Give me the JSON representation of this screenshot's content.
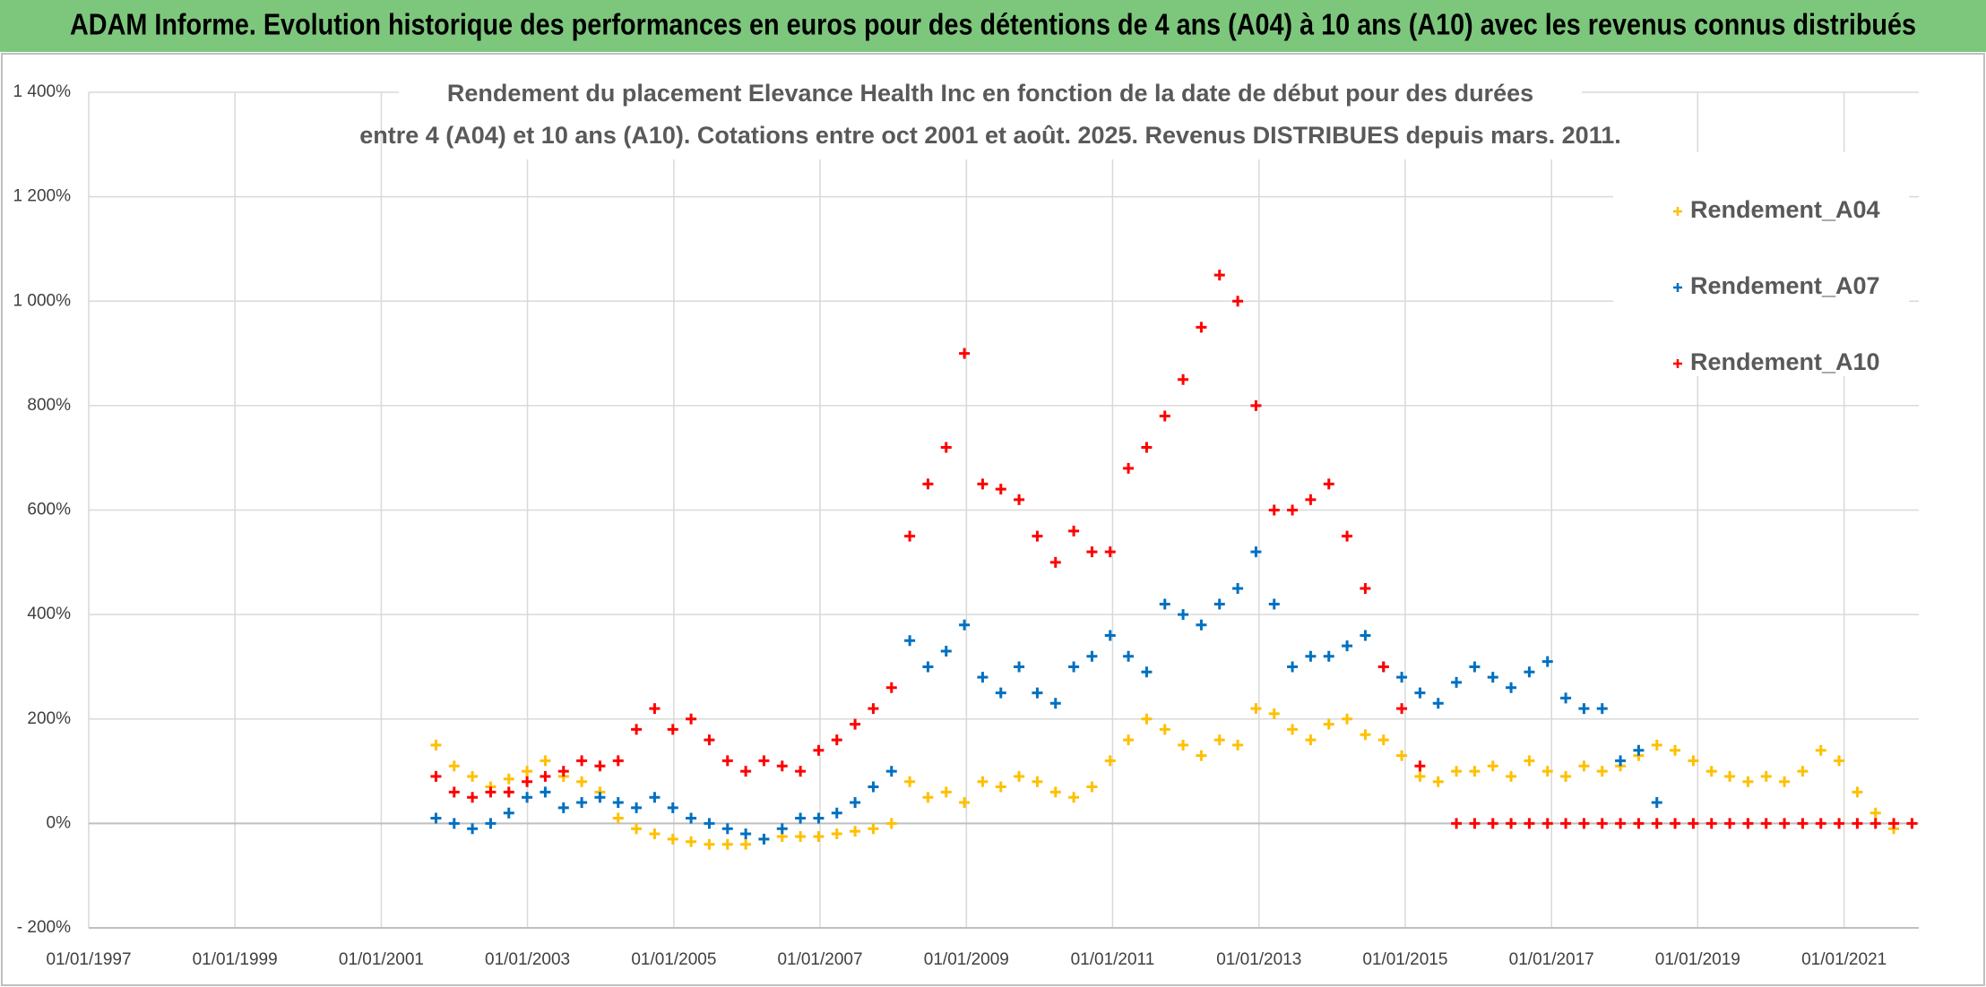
{
  "header": {
    "title": "ADAM Informe. Evolution historique des performances en euros pour des détentions de 4 ans (A04) à 10 ans (A10) avec les revenus connus distribués"
  },
  "chart_data": {
    "type": "scatter",
    "title": [
      "Rendement du placement Elevance Health Inc en fonction de la date de début pour des durées",
      "entre 4 (A04) et 10 ans (A10). Cotations entre oct 2001 et août. 2025. Revenus DISTRIBUES depuis mars. 2011."
    ],
    "xlim": [
      35431,
      44570
    ],
    "xticks": [
      {
        "value": 35431,
        "label": "01/01/1997"
      },
      {
        "value": 36161,
        "label": "01/01/1999"
      },
      {
        "value": 36892,
        "label": "01/01/2001"
      },
      {
        "value": 37622,
        "label": "01/01/2003"
      },
      {
        "value": 38353,
        "label": "01/01/2005"
      },
      {
        "value": 39083,
        "label": "01/01/2007"
      },
      {
        "value": 39814,
        "label": "01/01/2009"
      },
      {
        "value": 40544,
        "label": "01/01/2011"
      },
      {
        "value": 41275,
        "label": "01/01/2013"
      },
      {
        "value": 42005,
        "label": "01/01/2015"
      },
      {
        "value": 42736,
        "label": "01/01/2017"
      },
      {
        "value": 43466,
        "label": "01/01/2019"
      },
      {
        "value": 44197,
        "label": "01/01/2021"
      }
    ],
    "ylim": [
      -200,
      1400
    ],
    "yticks": [
      {
        "value": -200,
        "label": "- 200%"
      },
      {
        "value": 0,
        "label": "0%"
      },
      {
        "value": 200,
        "label": "200%"
      },
      {
        "value": 400,
        "label": "400%"
      },
      {
        "value": 600,
        "label": "600%"
      },
      {
        "value": 800,
        "label": "800%"
      },
      {
        "value": 1000,
        "label": "1 000%"
      },
      {
        "value": 1200,
        "label": "1 200%"
      },
      {
        "value": 1400,
        "label": "1 400%"
      }
    ],
    "grid": true,
    "legend": "upper right",
    "series": [
      {
        "name": "Rendement_A04",
        "color": "#ffc000",
        "x": [
          37165,
          37256,
          37347,
          37438,
          37529,
          37620,
          37711,
          37802,
          37893,
          37984,
          38075,
          38166,
          38257,
          38348,
          38439,
          38530,
          38621,
          38712,
          38803,
          38894,
          38985,
          39076,
          39167,
          39258,
          39349,
          39440,
          39531,
          39622,
          39713,
          39804,
          39895,
          39986,
          40077,
          40168,
          40259,
          40350,
          40441,
          40532,
          40623,
          40714,
          40805,
          40896,
          40987,
          41078,
          41169,
          41260,
          41351,
          41442,
          41533,
          41624,
          41715,
          41806,
          41897,
          41988,
          42079,
          42170,
          42261,
          42352,
          42443,
          42534,
          42625,
          42716,
          42807,
          42898,
          42989,
          43080,
          43171,
          43262,
          43353,
          43444,
          43535,
          43626,
          43717,
          43808,
          43899,
          43990,
          44081,
          44172,
          44263,
          44354,
          44445
        ],
        "values": [
          150,
          110,
          90,
          70,
          85,
          100,
          120,
          90,
          80,
          60,
          10,
          -10,
          -20,
          -30,
          -35,
          -40,
          -40,
          -40,
          -30,
          -25,
          -25,
          -25,
          -20,
          -15,
          -10,
          0,
          80,
          50,
          60,
          40,
          80,
          70,
          90,
          80,
          60,
          50,
          70,
          120,
          160,
          200,
          180,
          150,
          130,
          160,
          150,
          220,
          210,
          180,
          160,
          190,
          200,
          170,
          160,
          130,
          90,
          80,
          100,
          100,
          110,
          90,
          120,
          100,
          90,
          110,
          100,
          110,
          130,
          150,
          140,
          120,
          100,
          90,
          80,
          90,
          80,
          100,
          140,
          120,
          60,
          20,
          -10
        ]
      },
      {
        "name": "Rendement_A07",
        "color": "#0070c0",
        "x": [
          37165,
          37256,
          37347,
          37438,
          37529,
          37620,
          37711,
          37802,
          37893,
          37984,
          38075,
          38166,
          38257,
          38348,
          38439,
          38530,
          38621,
          38712,
          38803,
          38894,
          38985,
          39076,
          39167,
          39258,
          39349,
          39440,
          39531,
          39622,
          39713,
          39804,
          39895,
          39986,
          40077,
          40168,
          40259,
          40350,
          40441,
          40532,
          40623,
          40714,
          40805,
          40896,
          40987,
          41078,
          41169,
          41260,
          41351,
          41442,
          41533,
          41624,
          41715,
          41806,
          41897,
          41988,
          42079,
          42170,
          42261,
          42352,
          42443,
          42534,
          42625,
          42716,
          42807,
          42898,
          42989,
          43080,
          43171,
          43262
        ],
        "values": [
          10,
          0,
          -10,
          0,
          20,
          50,
          60,
          30,
          40,
          50,
          40,
          30,
          50,
          30,
          10,
          0,
          -10,
          -20,
          -30,
          -10,
          10,
          10,
          20,
          40,
          70,
          100,
          350,
          300,
          330,
          380,
          280,
          250,
          300,
          250,
          230,
          300,
          320,
          360,
          320,
          290,
          420,
          400,
          380,
          420,
          450,
          520,
          420,
          300,
          320,
          320,
          340,
          360,
          300,
          280,
          250,
          230,
          270,
          300,
          280,
          260,
          290,
          310,
          240,
          220,
          220,
          120,
          140,
          40
        ]
      },
      {
        "name": "Rendement_A10",
        "color": "#ff0000",
        "x": [
          37165,
          37256,
          37347,
          37438,
          37529,
          37620,
          37711,
          37802,
          37893,
          37984,
          38075,
          38166,
          38257,
          38348,
          38439,
          38530,
          38621,
          38712,
          38803,
          38894,
          38985,
          39076,
          39167,
          39258,
          39349,
          39440,
          39531,
          39622,
          39713,
          39804,
          39895,
          39986,
          40077,
          40168,
          40259,
          40350,
          40441,
          40532,
          40623,
          40714,
          40805,
          40896,
          40987,
          41078,
          41169,
          41260,
          41351,
          41442,
          41533,
          41624,
          41715,
          41806,
          41897,
          41988,
          42079,
          42261,
          42352,
          42443,
          42534,
          42625,
          42716,
          42807,
          42898,
          42989,
          43080,
          43171,
          43262,
          43353,
          43444,
          43535,
          43626,
          43717,
          43808,
          43899,
          43990,
          44081,
          44172,
          44263,
          44354,
          44445,
          44536
        ],
        "values": [
          90,
          60,
          50,
          60,
          60,
          80,
          90,
          100,
          120,
          110,
          120,
          180,
          220,
          180,
          200,
          160,
          120,
          100,
          120,
          110,
          100,
          140,
          160,
          190,
          220,
          260,
          550,
          650,
          720,
          900,
          650,
          640,
          620,
          550,
          500,
          560,
          520,
          520,
          680,
          720,
          780,
          850,
          950,
          1050,
          1000,
          800,
          600,
          600,
          620,
          650,
          550,
          450,
          300,
          220,
          110,
          0,
          0,
          0,
          0,
          0,
          0,
          0,
          0,
          0,
          0,
          0,
          0,
          0,
          0,
          0,
          0,
          0,
          0,
          0,
          0,
          0,
          0,
          0,
          0,
          0,
          0
        ]
      }
    ]
  }
}
